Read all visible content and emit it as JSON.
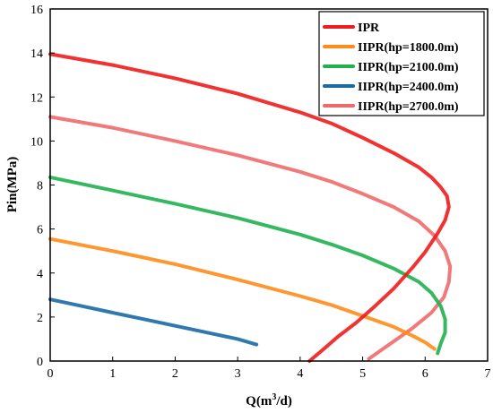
{
  "chart_data": {
    "type": "line",
    "xlabel": "Q(m",
    "xlabel_sup": "3",
    "xlabel_tail": "/d)",
    "ylabel": "Pin(MPa)",
    "xlim": [
      0,
      7
    ],
    "ylim": [
      0,
      16
    ],
    "x_ticks": [
      "0",
      "1",
      "2",
      "3",
      "4",
      "5",
      "6",
      "7"
    ],
    "y_ticks": [
      "0",
      "2",
      "4",
      "6",
      "8",
      "10",
      "12",
      "14",
      "16"
    ],
    "grid": false,
    "legend_position": "top-right",
    "series": [
      {
        "name": "IPR",
        "color": "#ee1c1c",
        "points": [
          [
            0,
            13.95
          ],
          [
            1,
            13.45
          ],
          [
            2,
            12.85
          ],
          [
            3,
            12.15
          ],
          [
            4,
            11.3
          ],
          [
            4.5,
            10.8
          ],
          [
            5,
            10.15
          ],
          [
            5.5,
            9.45
          ],
          [
            5.9,
            8.8
          ],
          [
            6.1,
            8.35
          ],
          [
            6.25,
            7.9
          ],
          [
            6.35,
            7.5
          ],
          [
            6.38,
            7.0
          ],
          [
            6.32,
            6.4
          ],
          [
            6.2,
            5.8
          ],
          [
            6.0,
            4.95
          ],
          [
            5.8,
            4.25
          ],
          [
            5.5,
            3.3
          ],
          [
            5.2,
            2.5
          ],
          [
            4.9,
            1.75
          ],
          [
            4.6,
            1.1
          ],
          [
            4.4,
            0.6
          ],
          [
            4.15,
            0
          ]
        ]
      },
      {
        "name": "IIPR(hp=1800.0m)",
        "color": "#ff8c1a",
        "points": [
          [
            0,
            5.55
          ],
          [
            1,
            5.0
          ],
          [
            2,
            4.4
          ],
          [
            3,
            3.7
          ],
          [
            4,
            2.95
          ],
          [
            4.5,
            2.55
          ],
          [
            5,
            2.05
          ],
          [
            5.5,
            1.55
          ],
          [
            5.8,
            1.15
          ],
          [
            6.0,
            0.85
          ],
          [
            6.15,
            0.55
          ]
        ]
      },
      {
        "name": "IIPR(hp=2100.0m)",
        "color": "#20b050",
        "points": [
          [
            0,
            8.35
          ],
          [
            1,
            7.75
          ],
          [
            2,
            7.15
          ],
          [
            3,
            6.5
          ],
          [
            4,
            5.75
          ],
          [
            4.5,
            5.3
          ],
          [
            5,
            4.8
          ],
          [
            5.5,
            4.2
          ],
          [
            5.9,
            3.6
          ],
          [
            6.1,
            3.1
          ],
          [
            6.25,
            2.5
          ],
          [
            6.32,
            1.9
          ],
          [
            6.32,
            1.3
          ],
          [
            6.25,
            0.8
          ],
          [
            6.2,
            0.35
          ]
        ]
      },
      {
        "name": "IIPR(hp=2400.0m)",
        "color": "#1a6aa6",
        "points": [
          [
            0,
            2.8
          ],
          [
            0.5,
            2.5
          ],
          [
            1,
            2.2
          ],
          [
            1.5,
            1.9
          ],
          [
            2,
            1.6
          ],
          [
            2.5,
            1.3
          ],
          [
            3,
            1.0
          ],
          [
            3.3,
            0.75
          ]
        ]
      },
      {
        "name": "IIPR(hp=2700.0m)",
        "color": "#f06a6a",
        "points": [
          [
            0,
            11.1
          ],
          [
            1,
            10.6
          ],
          [
            2,
            10.0
          ],
          [
            3,
            9.35
          ],
          [
            4,
            8.6
          ],
          [
            4.5,
            8.15
          ],
          [
            5,
            7.6
          ],
          [
            5.5,
            7.0
          ],
          [
            5.9,
            6.35
          ],
          [
            6.15,
            5.7
          ],
          [
            6.32,
            5.0
          ],
          [
            6.4,
            4.3
          ],
          [
            6.38,
            3.6
          ],
          [
            6.3,
            2.9
          ],
          [
            6.1,
            2.2
          ],
          [
            5.8,
            1.5
          ],
          [
            5.4,
            0.7
          ],
          [
            5.1,
            0.1
          ]
        ]
      }
    ]
  }
}
